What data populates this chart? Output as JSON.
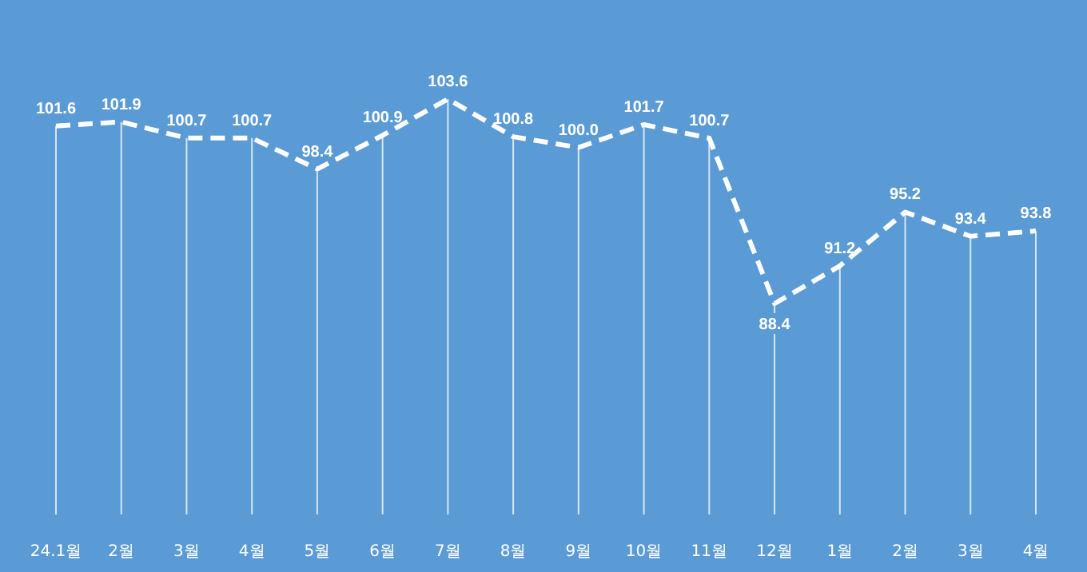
{
  "chart_data": {
    "type": "line",
    "categories": [
      "24.1월",
      "2월",
      "3월",
      "4월",
      "5월",
      "6월",
      "7월",
      "8월",
      "9월",
      "10월",
      "11월",
      "12월",
      "1월",
      "2월",
      "3월",
      "4월"
    ],
    "series": [
      {
        "color": "#ffffff",
        "values": [
          101.6,
          101.9,
          100.7,
          100.7,
          98.4,
          100.9,
          103.6,
          100.8,
          100.0,
          101.7,
          100.7,
          88.4,
          91.2,
          95.2,
          93.4,
          93.8
        ],
        "value_labels": [
          "101.6",
          "101.9",
          "100.7",
          "100.7",
          "98.4",
          "100.9",
          "103.6",
          "100.8",
          "100.0",
          "101.7",
          "100.7",
          "88.4",
          "91.2",
          "95.2",
          "93.4",
          "93.8"
        ]
      }
    ],
    "line_style": "dashed",
    "marker": "none",
    "grid": "x"
  }
}
